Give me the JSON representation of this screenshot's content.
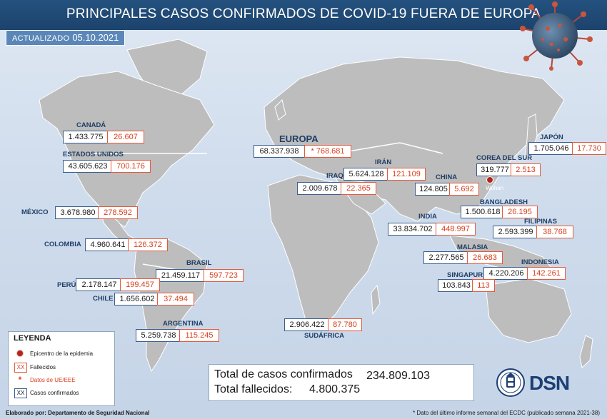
{
  "title": "PRINCIPALES CASOS CONFIRMADOS DE COVID-19 FUERA DE EUROPA",
  "updated": {
    "label": "ACTUALIZADO",
    "date": "05.10.2021"
  },
  "colors": {
    "title_bar": "#1f4a76",
    "confirmed_border": "#3a5f8f",
    "deaths_text": "#d8401f",
    "land": "#bcbcbc",
    "epicenter": "#b3261e"
  },
  "regions": {
    "canada": {
      "label": "CANADÁ",
      "confirmed": "1.433.775",
      "deaths": "26.607"
    },
    "usa": {
      "label": "ESTADOS UNIDOS",
      "confirmed": "43.605.623",
      "deaths": "700.176"
    },
    "mexico": {
      "label": "MÉXICO",
      "confirmed": "3.678.980",
      "deaths": "278.592"
    },
    "colombia": {
      "label": "COLOMBIA",
      "confirmed": "4.960.641",
      "deaths": "126.372"
    },
    "brasil": {
      "label": "BRASIL",
      "confirmed": "21.459.117",
      "deaths": "597.723"
    },
    "peru": {
      "label": "PERÚ",
      "confirmed": "2.178.147",
      "deaths": "199.457"
    },
    "chile": {
      "label": "CHILE",
      "confirmed": "1.656.602",
      "deaths": "37.494"
    },
    "argentina": {
      "label": "ARGENTINA",
      "confirmed": "5.259.738",
      "deaths": "115.245"
    },
    "europa": {
      "label": "EUROPA",
      "confirmed": "68.337.938",
      "deaths": "* 768.681"
    },
    "iran": {
      "label": "IRÁN",
      "confirmed": "5.624.128",
      "deaths": "121.109"
    },
    "iraq": {
      "label": "IRAQ",
      "confirmed": "2.009.678",
      "deaths": "22.365"
    },
    "china": {
      "label": "CHINA",
      "confirmed": "124.805",
      "deaths": "5.692"
    },
    "japon": {
      "label": "JAPÓN",
      "confirmed": "1.705.046",
      "deaths": "17.730"
    },
    "corea": {
      "label": "COREA DEL SUR",
      "confirmed": "319.777",
      "deaths": "2.513"
    },
    "bangladesh": {
      "label": "BANGLADESH",
      "confirmed": "1.500.618",
      "deaths": "26.195"
    },
    "india": {
      "label": "INDIA",
      "confirmed": "33.834.702",
      "deaths": "448.997"
    },
    "filipinas": {
      "label": "FILIPINAS",
      "confirmed": "2.593.399",
      "deaths": "38.768"
    },
    "malasia": {
      "label": "MALASIA",
      "confirmed": "2.277.565",
      "deaths": "26.683"
    },
    "indonesia": {
      "label": "INDONESIA",
      "confirmed": "4.220.206",
      "deaths": "142.261"
    },
    "singapur": {
      "label": "SINGAPUR",
      "confirmed": "103.843",
      "deaths": "113"
    },
    "sudafrica": {
      "label": "SUDÁFRICA",
      "confirmed": "2.906.422",
      "deaths": "87.780"
    }
  },
  "wuhan_label": "Wuhan",
  "legend": {
    "title": "LEYENDA",
    "epicenter": "Epicentro de la epidemia",
    "deaths_sym": "XX",
    "deaths": "Fallecidos",
    "eu_sym": "*",
    "eu_data": "Datos de UE/EEE",
    "confirmed_sym": "XX",
    "confirmed": "Casos confirmados"
  },
  "totals": {
    "confirmed_label": "Total de casos confirmados",
    "confirmed_value": "234.809.103",
    "deaths_label": "Total fallecidos:",
    "deaths_value": "4.800.375"
  },
  "logo_text": "DSN",
  "footer_left": "Elaborado por: Departamento de Seguridad Nacional",
  "footer_note": "* Dato del último informe semanal del ECDC (publicado semana 2021-38)"
}
